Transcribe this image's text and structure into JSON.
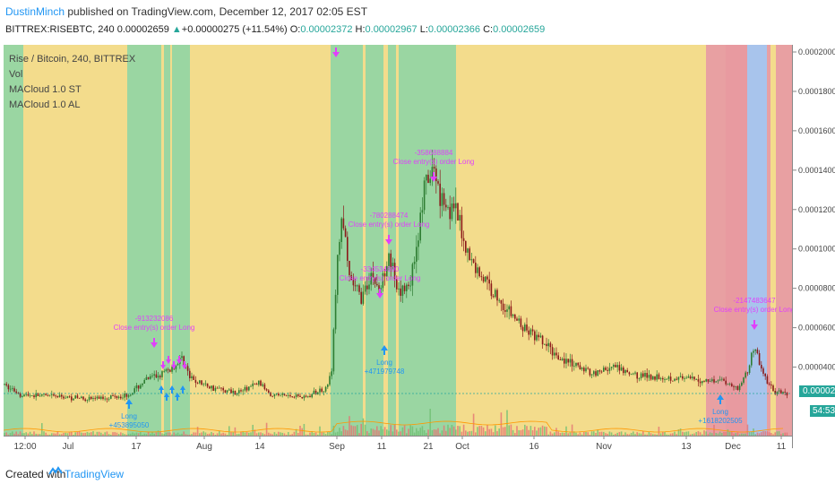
{
  "header": {
    "author": "DustinMinch",
    "published_text": " published on TradingView.com, December 12, 2017 02:05 EST",
    "symbol": "BITTREX:RISEBTC, 240",
    "last": "0.00002659",
    "change": "+0.00000275 (+11.54%)",
    "o_label": "O:",
    "o": "0.00002372",
    "h_label": "H:",
    "h": "0.00002967",
    "l_label": "L:",
    "l": "0.00002366",
    "c_label": "C:",
    "c": "0.00002659"
  },
  "legend": {
    "title": "Rise / Bitcoin, 240, BITTREX",
    "vol": "Vol",
    "ind1": "MACloud 1.0 ST",
    "ind2": "MACloud 1.0 AL"
  },
  "footer": {
    "created": "Created with",
    "brand": "TradingView"
  },
  "colors": {
    "yellow": "#f3dc8c",
    "green": "#9ad6a2",
    "red": "#e8a0a2",
    "blue": "#a8c4ec",
    "candle_up": "#2e7d32",
    "candle_down": "#8b1a1a",
    "signal": "#e040fb",
    "long": "#2196f3"
  },
  "chart_data": {
    "type": "candlestick",
    "yaxis": {
      "min": 1e-05,
      "max": 0.0002,
      "ticks": [
        "0.00020000",
        "0.00018000",
        "0.00016000",
        "0.00014000",
        "0.00012000",
        "0.00010000",
        "0.00008000",
        "0.00006000",
        "0.00004000",
        "0.00002659"
      ]
    },
    "xaxis": {
      "ticks": [
        "12:00",
        "Jul",
        "17",
        "Aug",
        "14",
        "Sep",
        "11",
        "21",
        "Oct",
        "16",
        "Nov",
        "13",
        "Dec",
        "11"
      ]
    },
    "current_price": "0.00002659",
    "countdown": "54:53",
    "price_path": [
      [
        0,
        3.1e-05
      ],
      [
        20,
        2.6e-05
      ],
      [
        60,
        2.5e-05
      ],
      [
        100,
        2.4e-05
      ],
      [
        140,
        2.6e-05
      ],
      [
        160,
        3.4e-05
      ],
      [
        175,
        3.6e-05
      ],
      [
        190,
        4e-05
      ],
      [
        200,
        4.5e-05
      ],
      [
        208,
        3.4e-05
      ],
      [
        230,
        3e-05
      ],
      [
        260,
        2.7e-05
      ],
      [
        285,
        3.2e-05
      ],
      [
        300,
        2.6e-05
      ],
      [
        340,
        2.5e-05
      ],
      [
        360,
        3e-05
      ],
      [
        366,
        3.6e-05
      ],
      [
        372,
        9e-05
      ],
      [
        378,
        0.00012
      ],
      [
        385,
        8.5e-05
      ],
      [
        400,
        7.5e-05
      ],
      [
        410,
        8.8e-05
      ],
      [
        420,
        7.8e-05
      ],
      [
        430,
        0.0001
      ],
      [
        440,
        7.5e-05
      ],
      [
        455,
        8.5e-05
      ],
      [
        470,
        0.00013
      ],
      [
        480,
        0.00014
      ],
      [
        490,
        0.000125
      ],
      [
        505,
        0.000118
      ],
      [
        520,
        9.5e-05
      ],
      [
        540,
        8.2e-05
      ],
      [
        560,
        7e-05
      ],
      [
        580,
        6e-05
      ],
      [
        600,
        5.3e-05
      ],
      [
        620,
        4.5e-05
      ],
      [
        640,
        4e-05
      ],
      [
        660,
        3.7e-05
      ],
      [
        680,
        4e-05
      ],
      [
        700,
        3.6e-05
      ],
      [
        740,
        3.5e-05
      ],
      [
        780,
        3.3e-05
      ],
      [
        800,
        3.4e-05
      ],
      [
        820,
        2.9e-05
      ],
      [
        832,
        4e-05
      ],
      [
        838,
        5.2e-05
      ],
      [
        846,
        3.8e-05
      ],
      [
        860,
        2.7e-05
      ],
      [
        876,
        2.7e-05
      ]
    ],
    "signals": [
      {
        "kind": "long",
        "label": "Long",
        "value": "+453895050"
      },
      {
        "kind": "close",
        "label": "Close entry(s) order Long",
        "value": "-913232086"
      },
      {
        "kind": "close",
        "label": "Close entry(s) order Long",
        "value": "-780288474"
      },
      {
        "kind": "close",
        "label": "Close entry(s) order Long",
        "value": "-358688884"
      },
      {
        "kind": "close",
        "label": "Close entry(s) order Long",
        "value": "-334534690"
      },
      {
        "kind": "long",
        "label": "Long",
        "value": "+471979748"
      },
      {
        "kind": "close",
        "label": "Close entry(s) order Long",
        "value": "-2147483647"
      },
      {
        "kind": "long",
        "label": "Long",
        "value": "+1618202505"
      }
    ]
  }
}
